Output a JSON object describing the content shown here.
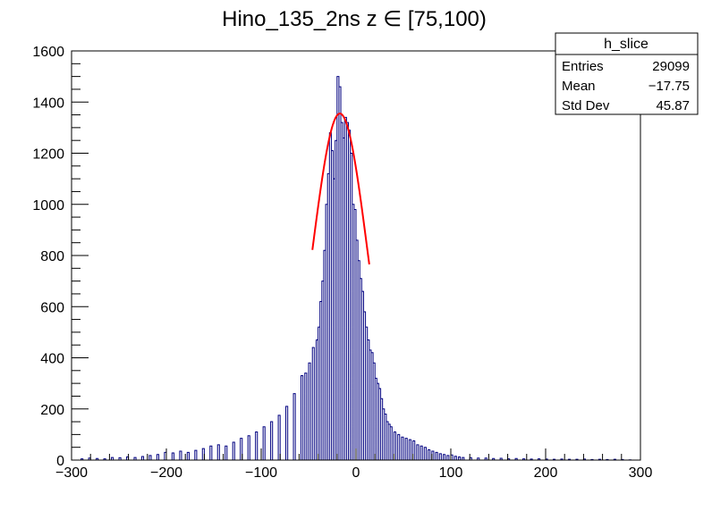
{
  "chart_data": {
    "type": "histogram",
    "title": "Hino_135_2ns z  ∈ [75,100)",
    "xlim": [
      -300,
      300
    ],
    "ylim": [
      0,
      1600
    ],
    "x_ticks": [
      -300,
      -200,
      -100,
      0,
      100,
      200,
      300
    ],
    "y_ticks": [
      0,
      200,
      400,
      600,
      800,
      1000,
      1200,
      1400,
      1600
    ],
    "grid": false,
    "histogram_color": "#000080",
    "fit_color": "#ff0000",
    "series": [
      {
        "name": "h_slice",
        "bin_width": 2,
        "x": [
          -289,
          -281,
          -273,
          -265,
          -257,
          -249,
          -241,
          -233,
          -225,
          -217,
          -209,
          -201,
          -193,
          -185,
          -177,
          -169,
          -161,
          -153,
          -145,
          -137,
          -129,
          -121,
          -113,
          -105,
          -97,
          -89,
          -81,
          -73,
          -65,
          -57,
          -53,
          -49,
          -45,
          -41,
          -39,
          -37,
          -35,
          -33,
          -31,
          -29,
          -27,
          -25,
          -23,
          -21,
          -19,
          -17,
          -15,
          -13,
          -11,
          -9,
          -7,
          -5,
          -3,
          -1,
          1,
          3,
          5,
          7,
          9,
          11,
          13,
          15,
          17,
          19,
          21,
          23,
          25,
          27,
          29,
          31,
          33,
          35,
          37,
          41,
          45,
          49,
          53,
          57,
          61,
          65,
          69,
          73,
          77,
          81,
          85,
          89,
          93,
          97,
          101,
          105,
          109,
          113,
          121,
          129,
          137,
          145,
          153,
          161,
          169,
          177,
          185,
          193,
          201,
          209,
          217,
          225,
          233,
          241,
          249,
          257,
          265,
          273,
          281,
          289
        ],
        "values": [
          5,
          8,
          6,
          5,
          10,
          9,
          12,
          10,
          14,
          18,
          22,
          30,
          28,
          35,
          30,
          38,
          45,
          55,
          60,
          55,
          70,
          85,
          95,
          110,
          130,
          150,
          175,
          210,
          260,
          330,
          340,
          380,
          440,
          470,
          520,
          620,
          700,
          820,
          1000,
          1120,
          1280,
          1210,
          1100,
          1250,
          1500,
          1460,
          1320,
          1260,
          1340,
          1320,
          1290,
          1200,
          1000,
          980,
          860,
          780,
          710,
          660,
          580,
          520,
          470,
          430,
          420,
          380,
          320,
          300,
          280,
          240,
          200,
          180,
          150,
          140,
          130,
          110,
          100,
          90,
          85,
          80,
          75,
          60,
          55,
          50,
          40,
          35,
          30,
          25,
          22,
          18,
          20,
          15,
          12,
          10,
          9,
          8,
          8,
          6,
          7,
          5,
          6,
          5,
          4,
          5,
          4,
          3,
          4,
          3,
          3,
          4,
          2,
          3,
          2,
          3,
          2,
          1
        ]
      }
    ],
    "fit": {
      "type": "gaussian",
      "amplitude": 1355,
      "mean": -17,
      "sigma": 29,
      "x_range": [
        -46,
        14
      ]
    },
    "stats_box": {
      "title": "h_slice",
      "rows": [
        {
          "label": "Entries",
          "value": "29099"
        },
        {
          "label": "Mean",
          "value": "−17.75"
        },
        {
          "label": "Std Dev",
          "value": "45.87"
        }
      ]
    }
  }
}
